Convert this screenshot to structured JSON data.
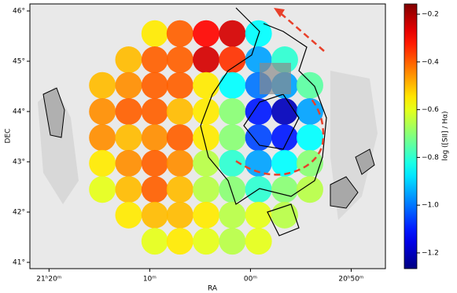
{
  "chart_data": {
    "type": "scatter",
    "xlabel": "RA",
    "ylabel": "DEC",
    "colorbar_label": "log ([SII] / Hα)",
    "colormap": "jet",
    "xlim": [
      1281.9,
      1246.6
    ],
    "xticks": [
      {
        "value": 1280,
        "label": "21ʰ20ᵐ"
      },
      {
        "value": 1270,
        "label": "10ᵐ"
      },
      {
        "value": 1260,
        "label": "00ᵐ"
      },
      {
        "value": 1250,
        "label": "20ʰ50ᵐ"
      }
    ],
    "ylim": [
      40.875,
      46.14
    ],
    "yticks": [
      {
        "value": 46,
        "label": "46°"
      },
      {
        "value": 45,
        "label": "45°"
      },
      {
        "value": 44,
        "label": "44°"
      },
      {
        "value": 43,
        "label": "43°"
      },
      {
        "value": 42,
        "label": "42°"
      },
      {
        "value": 41,
        "label": "41°"
      }
    ],
    "clim": [
      -1.266,
      -0.157
    ],
    "cticks": [
      {
        "value": -0.2,
        "label": "−0.2"
      },
      {
        "value": -0.4,
        "label": "−0.4"
      },
      {
        "value": -0.6,
        "label": "−0.6"
      },
      {
        "value": -0.8,
        "label": "−0.8"
      },
      {
        "value": -1.0,
        "label": "−1.0"
      },
      {
        "value": -1.2,
        "label": "−1.2"
      }
    ],
    "x": [
      1269.5,
      1267.0,
      1264.4,
      1261.8,
      1259.2,
      1272.1,
      1269.5,
      1267.0,
      1264.4,
      1261.8,
      1259.2,
      1256.6,
      1274.7,
      1272.1,
      1269.5,
      1267.0,
      1264.4,
      1261.8,
      1259.2,
      1256.6,
      1254.1,
      1274.7,
      1272.1,
      1269.5,
      1267.0,
      1264.4,
      1261.8,
      1259.2,
      1256.6,
      1254.1,
      1274.7,
      1272.1,
      1269.5,
      1267.0,
      1264.4,
      1261.8,
      1259.2,
      1256.6,
      1254.1,
      1274.7,
      1272.1,
      1269.5,
      1267.0,
      1264.4,
      1261.8,
      1259.2,
      1256.6,
      1254.1,
      1274.7,
      1272.1,
      1269.5,
      1267.0,
      1264.4,
      1261.8,
      1259.2,
      1256.6,
      1254.1,
      1272.1,
      1269.5,
      1267.0,
      1264.4,
      1261.8,
      1259.2,
      1256.6,
      1269.5,
      1267.0,
      1264.4,
      1261.8,
      1259.2
    ],
    "y": [
      45.55,
      45.55,
      45.55,
      45.55,
      45.55,
      45.03,
      45.03,
      45.03,
      45.03,
      45.03,
      45.03,
      45.03,
      44.52,
      44.52,
      44.52,
      44.52,
      44.52,
      44.52,
      44.52,
      44.52,
      44.52,
      44.0,
      44.0,
      44.0,
      44.0,
      44.0,
      44.0,
      44.0,
      44.0,
      44.0,
      43.48,
      43.48,
      43.48,
      43.48,
      43.48,
      43.48,
      43.48,
      43.48,
      43.48,
      42.97,
      42.97,
      42.97,
      42.97,
      42.97,
      42.97,
      42.97,
      42.97,
      42.97,
      42.45,
      42.45,
      42.45,
      42.45,
      42.45,
      42.45,
      42.45,
      42.45,
      42.45,
      41.94,
      41.94,
      41.94,
      41.94,
      41.94,
      41.94,
      41.94,
      41.42,
      41.42,
      41.42,
      41.42,
      41.42
    ],
    "values": [
      -0.55,
      -0.4,
      -0.3,
      -0.25,
      -0.85,
      -0.5,
      -0.4,
      -0.4,
      -0.25,
      -0.35,
      -0.95,
      -0.8,
      -0.5,
      -0.45,
      -0.4,
      -0.4,
      -0.55,
      -0.85,
      -1.0,
      -0.95,
      -0.75,
      -0.45,
      -0.4,
      -0.4,
      -0.5,
      -0.55,
      -0.7,
      -1.1,
      -1.2,
      -0.95,
      -0.45,
      -0.5,
      -0.45,
      -0.4,
      -0.55,
      -0.7,
      -1.05,
      -1.1,
      -0.85,
      -0.55,
      -0.45,
      -0.4,
      -0.45,
      -0.65,
      -0.8,
      -0.95,
      -0.85,
      -0.7,
      -0.6,
      -0.5,
      -0.4,
      -0.5,
      -0.65,
      -0.7,
      -0.8,
      -0.7,
      -0.65,
      -0.55,
      -0.5,
      -0.5,
      -0.55,
      -0.65,
      -0.6,
      -0.65,
      -0.6,
      -0.55,
      -0.6,
      -0.65,
      -0.6
    ]
  }
}
